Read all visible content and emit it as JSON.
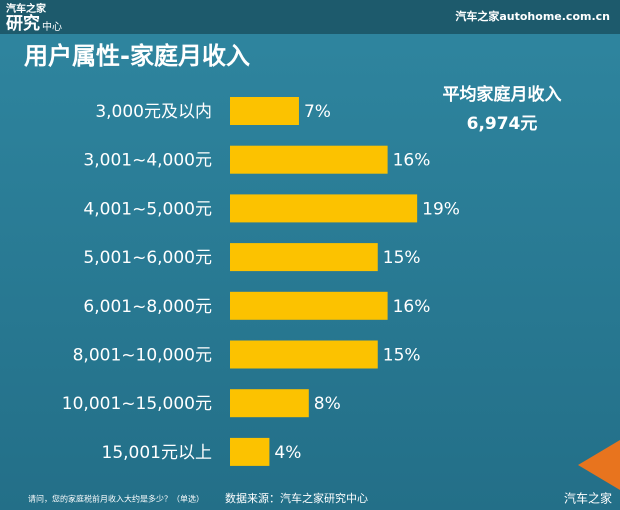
{
  "header": {
    "logo_top": "汽车之家",
    "logo_main": "研究",
    "logo_sub": "中心",
    "site": "汽车之家autohome.com.cn"
  },
  "chart_data": {
    "type": "bar",
    "orientation": "horizontal",
    "title": "用户属性-家庭月收入",
    "annotation": {
      "label": "平均家庭月收入",
      "value": "6,974元"
    },
    "categories": [
      "3,000元及以内",
      "3,001~4,000元",
      "4,001~5,000元",
      "5,001~6,000元",
      "6,001~8,000元",
      "8,001~10,000元",
      "10,001~15,000元",
      "15,001元以上"
    ],
    "values": [
      7,
      16,
      19,
      15,
      16,
      15,
      8,
      4
    ],
    "value_labels": [
      "7%",
      "16%",
      "19%",
      "15%",
      "16%",
      "15%",
      "8%",
      "4%"
    ],
    "color": "#fcc200"
  },
  "footer": {
    "question": "请问，您的家庭税前月收入大约是多少？（单选）",
    "source": "数据来源：汽车之家研究中心",
    "watermark": "汽车之家"
  }
}
